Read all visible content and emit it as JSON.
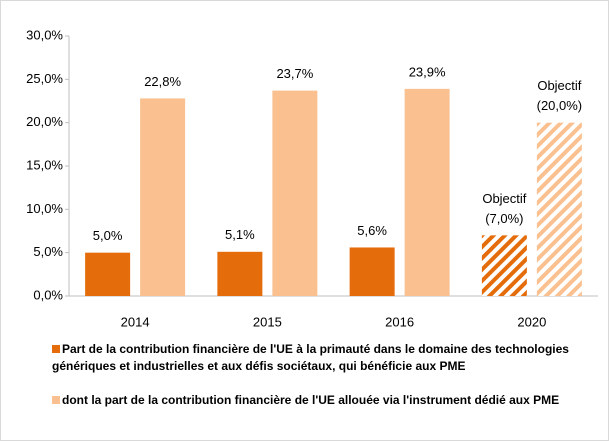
{
  "chart_data": {
    "type": "bar",
    "categories": [
      "2014",
      "2015",
      "2016",
      "2020"
    ],
    "series": [
      {
        "name": "Part de la contribution financière de l'UE à la primauté dans le domaine des technologies génériques et industrielles et aux défis sociétaux, qui bénéficie aux PME",
        "color": "#e46c0a",
        "values": [
          5.0,
          5.1,
          5.6,
          7.0
        ],
        "value_labels": [
          "5,0%",
          "5,1%",
          "5,6%",
          "(7,0%)"
        ],
        "hatched": [
          false,
          false,
          false,
          true
        ]
      },
      {
        "name": "dont la part de la contribution financière de l'UE allouée via l'instrument dédié aux PME",
        "color": "#fac090",
        "values": [
          22.8,
          23.7,
          23.9,
          20.0
        ],
        "value_labels": [
          "22,8%",
          "23,7%",
          "23,9%",
          "(20,0%)"
        ],
        "hatched": [
          false,
          false,
          false,
          true
        ]
      }
    ],
    "target_note": "Objectif",
    "ylim": [
      0,
      30
    ],
    "yticks": [
      {
        "value": 0,
        "label": "0,0%"
      },
      {
        "value": 5,
        "label": "5,0%"
      },
      {
        "value": 10,
        "label": "10,0%"
      },
      {
        "value": 15,
        "label": "15,0%"
      },
      {
        "value": 20,
        "label": "20,0%"
      },
      {
        "value": 25,
        "label": "25,0%"
      },
      {
        "value": 30,
        "label": "30,0%"
      }
    ],
    "grid": false
  }
}
